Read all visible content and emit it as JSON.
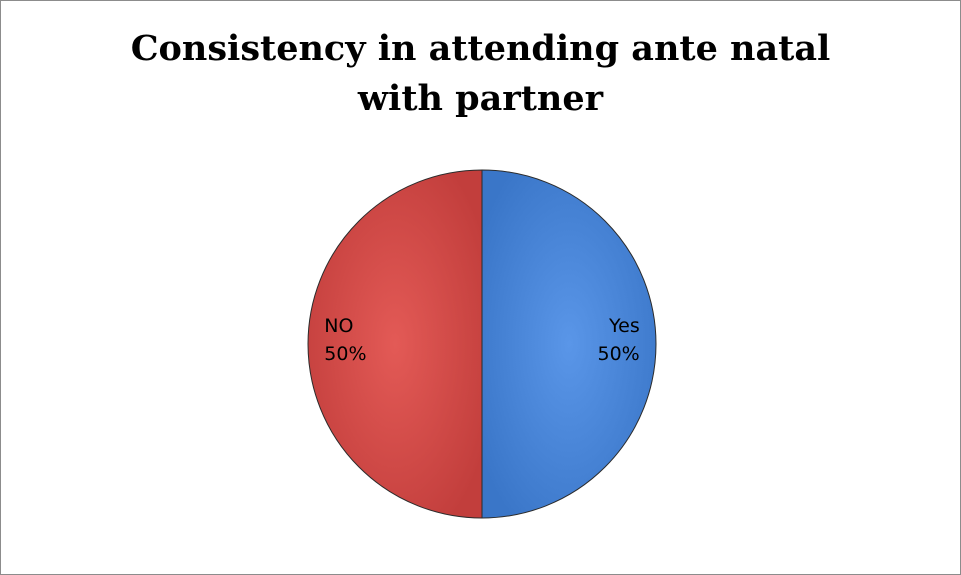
{
  "chart_data": {
    "type": "pie",
    "title": "Consistency in attending ante natal with partner",
    "slices": [
      {
        "label": "Yes",
        "value": 50,
        "percent_label": "50%",
        "color": "#4a86d8"
      },
      {
        "label": "NO",
        "value": 50,
        "percent_label": "50%",
        "color": "#d64a48"
      }
    ],
    "legend": "none",
    "data_labels": "inside"
  }
}
